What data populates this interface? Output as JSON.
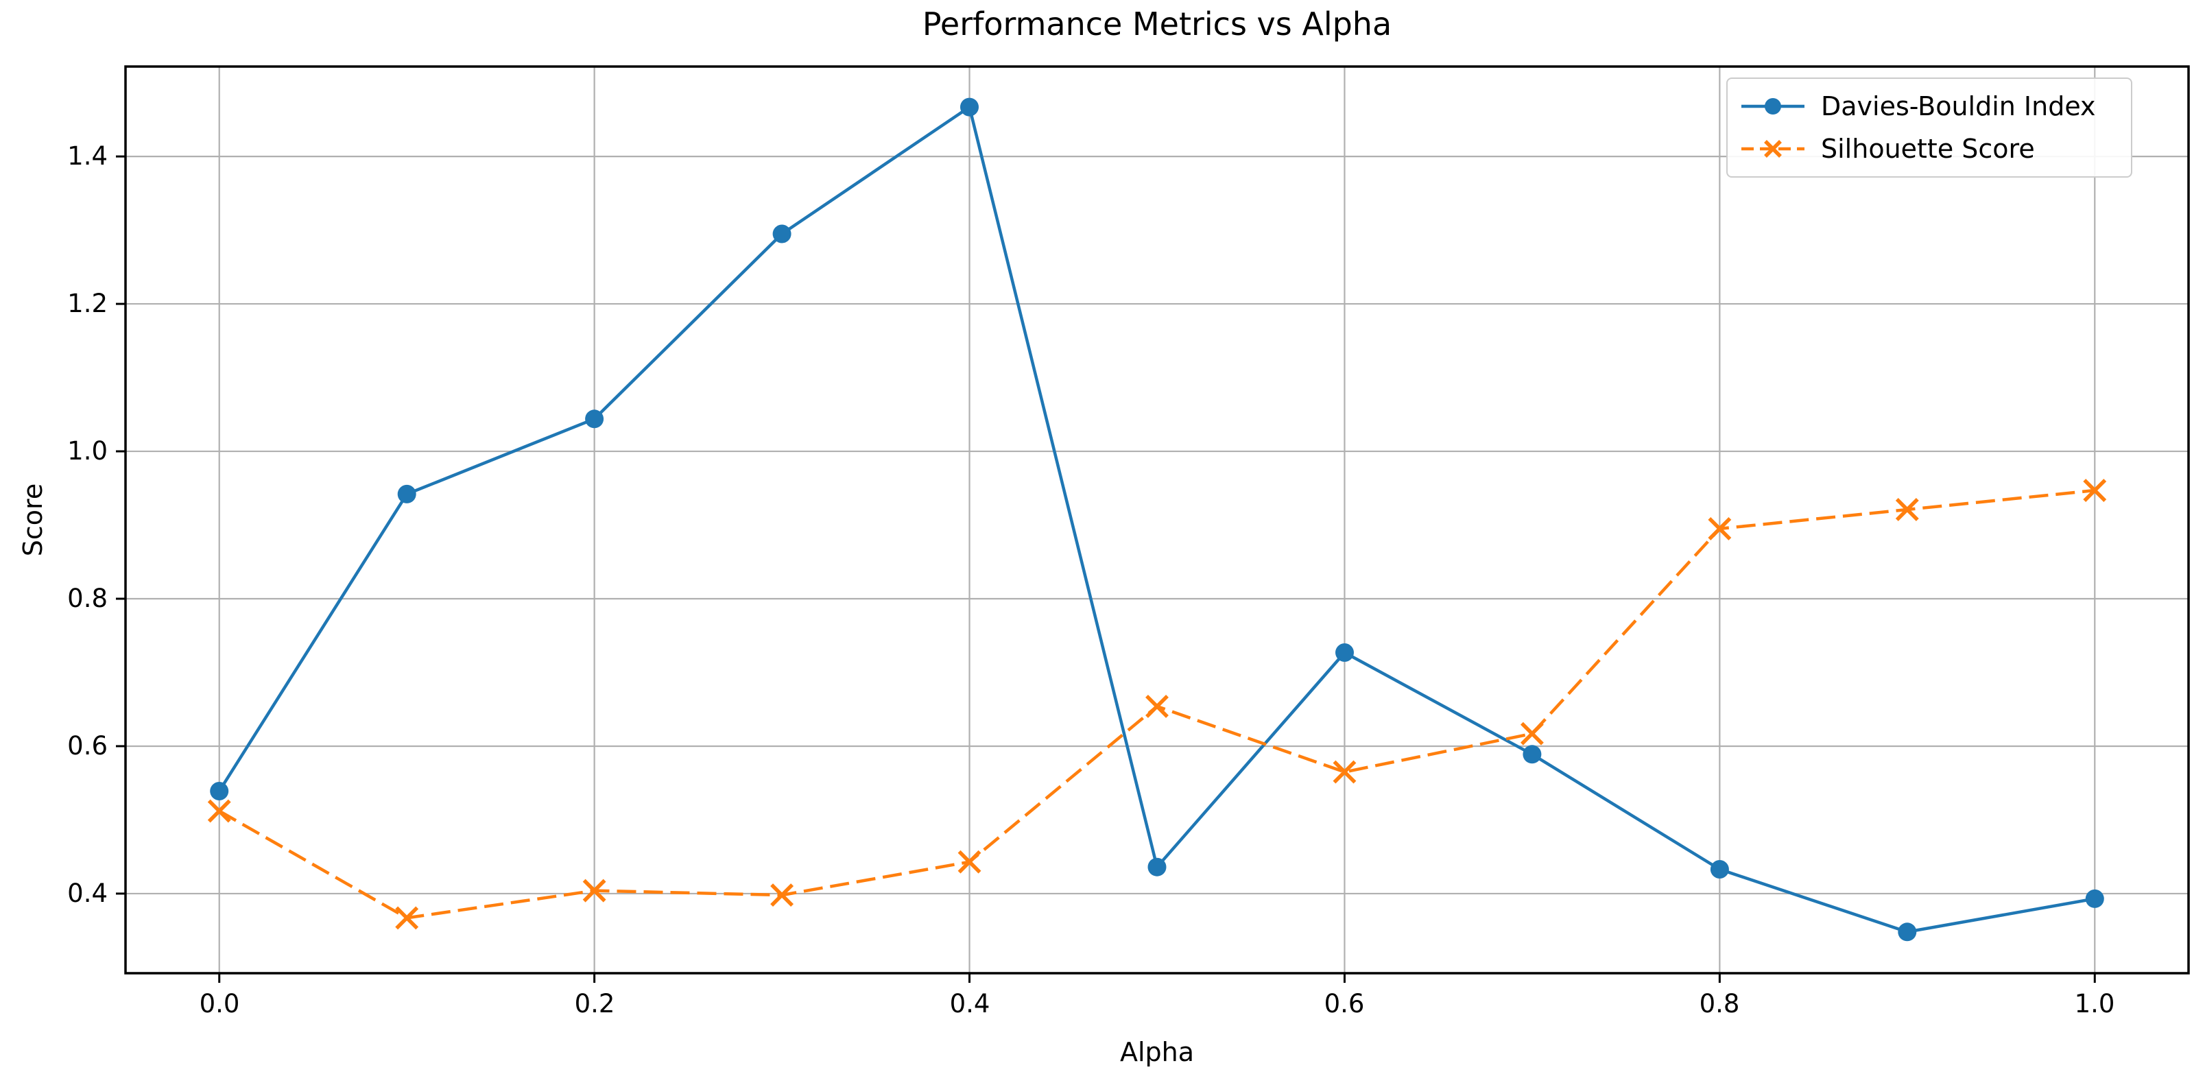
{
  "chart_data": {
    "type": "line",
    "title": "Performance Metrics vs Alpha",
    "xlabel": "Alpha",
    "ylabel": "Score",
    "x": [
      0.0,
      0.1,
      0.2,
      0.3,
      0.4,
      0.5,
      0.6,
      0.7,
      0.8,
      0.9,
      1.0
    ],
    "series": [
      {
        "name": "Davies-Bouldin Index",
        "color": "#1f77b4",
        "line_style": "solid",
        "marker": "circle",
        "values": [
          0.539,
          0.942,
          1.044,
          1.295,
          1.467,
          0.436,
          0.727,
          0.589,
          0.433,
          0.348,
          0.393
        ]
      },
      {
        "name": "Silhouette Score",
        "color": "#ff7f0e",
        "line_style": "dashed",
        "marker": "x",
        "values": [
          0.512,
          0.367,
          0.404,
          0.398,
          0.443,
          0.654,
          0.565,
          0.617,
          0.895,
          0.921,
          0.947
        ]
      }
    ],
    "x_ticks": [
      0.0,
      0.2,
      0.4,
      0.6,
      0.8,
      1.0
    ],
    "y_ticks": [
      0.4,
      0.6,
      0.8,
      1.0,
      1.2,
      1.4
    ],
    "xlim": [
      -0.05,
      1.05
    ],
    "ylim": [
      0.292,
      1.522
    ],
    "grid": true,
    "legend_position": "upper right",
    "grid_color": "#b0b0b0",
    "spine_color": "#000000",
    "text_color": "#000000",
    "background_color": "#ffffff"
  }
}
